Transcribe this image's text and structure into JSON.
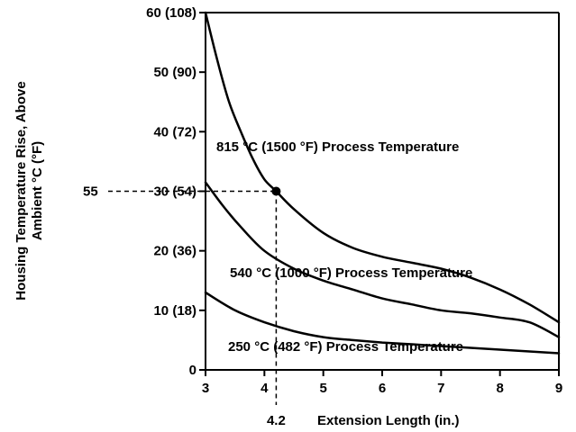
{
  "chart_data": {
    "type": "line",
    "title": "",
    "xlabel": "Extension Length (in.)",
    "ylabel": [
      "Housing Temperature Rise, Above",
      "Ambient °C (°F)"
    ],
    "xlim": [
      3,
      9
    ],
    "ylim": [
      0,
      60
    ],
    "x_ticks": [
      {
        "value": 3,
        "label": "3"
      },
      {
        "value": 4,
        "label": "4"
      },
      {
        "value": 5,
        "label": "5"
      },
      {
        "value": 6,
        "label": "6"
      },
      {
        "value": 7,
        "label": "7"
      },
      {
        "value": 8,
        "label": "8"
      },
      {
        "value": 9,
        "label": "9"
      }
    ],
    "y_ticks": [
      {
        "value": 0,
        "label": "0"
      },
      {
        "value": 10,
        "label": "10 (18)"
      },
      {
        "value": 20,
        "label": "20 (36)"
      },
      {
        "value": 30,
        "label": "30 (54)"
      },
      {
        "value": 40,
        "label": "40 (72)"
      },
      {
        "value": 50,
        "label": "50 (90)"
      },
      {
        "value": 60,
        "label": "60 (108)"
      }
    ],
    "grid": false,
    "series": [
      {
        "name": "815 °C (1500 °F) Process Temperature",
        "x": [
          3.0,
          3.2,
          3.4,
          3.6,
          3.8,
          4.0,
          4.2,
          4.5,
          5.0,
          5.5,
          6.0,
          6.5,
          7.0,
          7.5,
          8.0,
          8.5,
          9.0
        ],
        "y": [
          60.0,
          52.0,
          45.0,
          40.0,
          35.5,
          32.0,
          30.0,
          27.0,
          23.0,
          20.5,
          19.0,
          18.0,
          17.0,
          15.5,
          13.5,
          11.0,
          8.0
        ]
      },
      {
        "name": "540 °C (1000 °F) Process Temperature",
        "x": [
          3.0,
          3.3,
          3.6,
          4.0,
          4.5,
          5.0,
          5.5,
          6.0,
          6.5,
          7.0,
          7.5,
          8.0,
          8.5,
          9.0
        ],
        "y": [
          31.5,
          27.5,
          24.0,
          20.0,
          17.0,
          15.0,
          13.5,
          12.0,
          11.0,
          10.0,
          9.5,
          8.8,
          8.0,
          5.5
        ]
      },
      {
        "name": "250 °C (482 °F) Process Temperature",
        "x": [
          3.0,
          3.5,
          4.0,
          4.5,
          5.0,
          5.5,
          6.0,
          6.5,
          7.0,
          7.5,
          8.0,
          8.5,
          9.0
        ],
        "y": [
          13.0,
          10.0,
          8.0,
          6.5,
          5.5,
          5.0,
          4.6,
          4.3,
          4.0,
          3.7,
          3.4,
          3.1,
          2.8
        ]
      }
    ],
    "annotations": [
      {
        "type": "point",
        "x": 4.2,
        "y": 30.0
      },
      {
        "type": "ref-x",
        "x": 4.2,
        "label": "4.2"
      },
      {
        "type": "ref-y",
        "y": 30.0,
        "label": "55"
      }
    ]
  }
}
